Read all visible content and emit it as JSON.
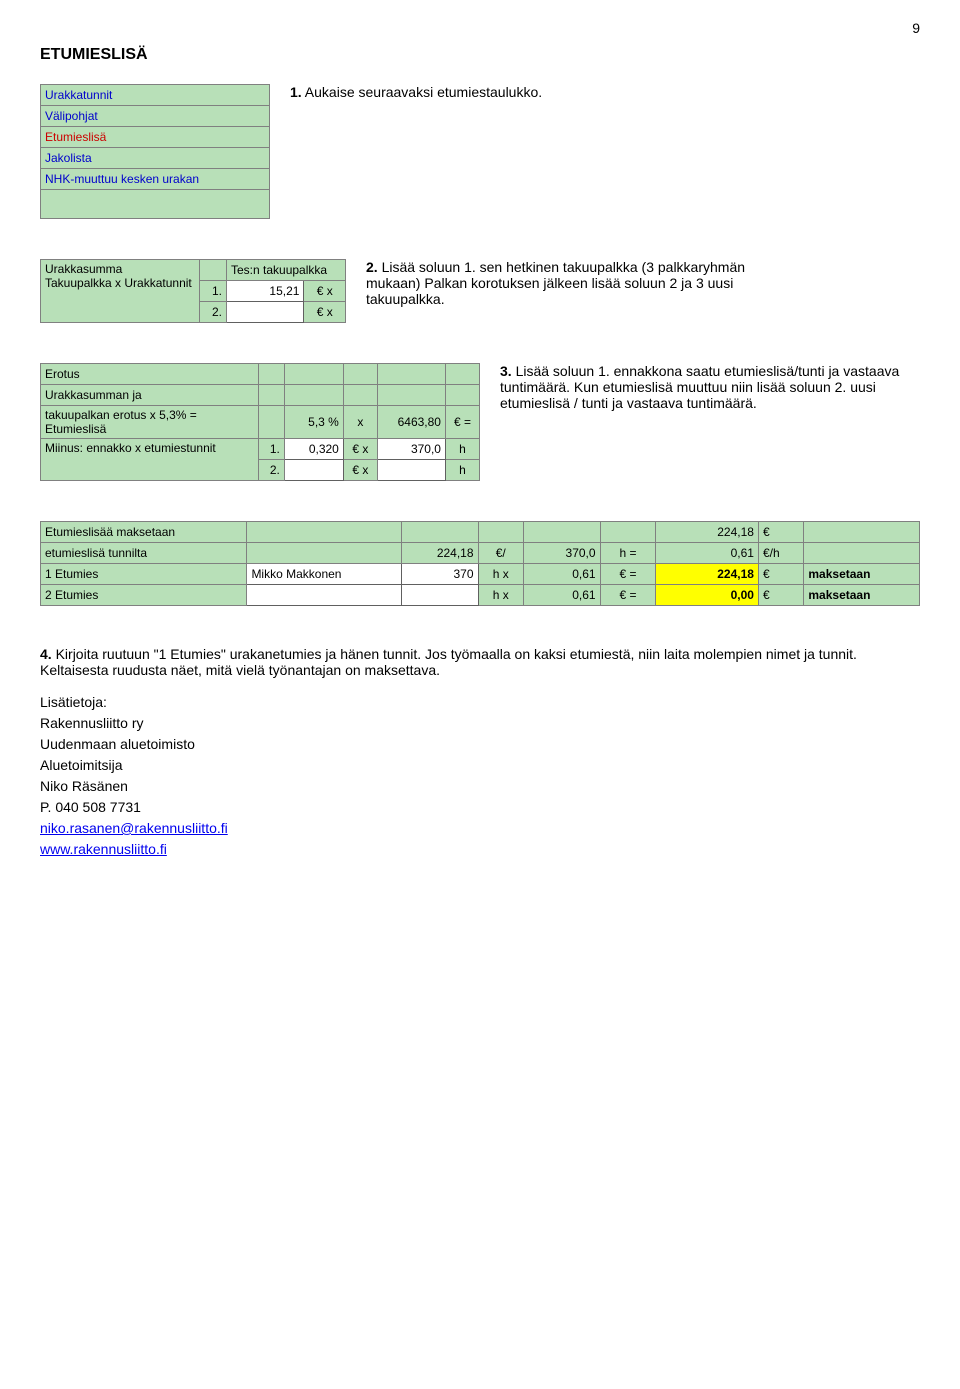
{
  "page_number": "9",
  "heading": "ETUMIESLISÄ",
  "step1": {
    "caption_bold": "1.",
    "caption_rest": " Aukaise seuraavaksi etumiestaulukko.",
    "menu": [
      {
        "text": "Urakkatunnit",
        "cls": "lbl-blue"
      },
      {
        "text": "Välipohjat",
        "cls": "lbl-blue"
      },
      {
        "text": "Etumieslisä",
        "cls": "lbl-red"
      },
      {
        "text": "Jakolista",
        "cls": "lbl-blue"
      },
      {
        "text": "NHK-muuttuu kesken urakan",
        "cls": "lbl-blue"
      }
    ]
  },
  "step2": {
    "caption_bold": "2.",
    "caption_rest": " Lisää soluun 1. sen hetkinen takuupalkka (3 palkkaryhmän mukaan) Palkan korotuksen jälkeen lisää soluun 2 ja 3 uusi takuupalkka.",
    "left_labels": [
      "Urakkasumma",
      "Takuupalkka x Urakkatunnit"
    ],
    "right_header": "Tes:n takuupalkka",
    "rows": [
      {
        "n": "1.",
        "val": "15,21",
        "unit": "€ x"
      },
      {
        "n": "2.",
        "val": "",
        "unit": "€ x"
      }
    ]
  },
  "step3": {
    "caption_bold": "3.",
    "caption_rest": " Lisää soluun 1. ennakkona saatu etumieslisä/tunti ja vastaava tuntimäärä. Kun etumieslisä muuttuu niin lisää soluun 2. uusi etumieslisä / tunti ja vastaava tuntimäärä.",
    "left_labels": [
      "Erotus",
      "Urakkasumman ja",
      "takuupalkan erotus x 5,3% = Etumieslisä",
      "Miinus: ennakko x etumiestunnit"
    ],
    "rowA": {
      "pct": "5,3 %",
      "x": "x",
      "val": "6463,80",
      "eq": "€ ="
    },
    "row1": {
      "n": "1.",
      "rate": "0,320",
      "hours": "370,0",
      "unit_h": "h"
    },
    "row2": {
      "n": "2.",
      "rate": "",
      "hours": "",
      "unit_h": "h"
    },
    "unit_eur_x": "€ x"
  },
  "step4": {
    "labels": [
      "Etumieslisää maksetaan",
      "etumieslisä tunnilta",
      "1 Etumies",
      "2 Etumies"
    ],
    "total": "224,18",
    "total_unit": "€",
    "row_tunnilta": {
      "rate": "224,18",
      "unit1": "€/",
      "hours": "370,0",
      "unit2": "h",
      "eq": "=",
      "perh": "0,61",
      "perh_unit": "€/h"
    },
    "row1": {
      "name": "Mikko Makkonen",
      "hours": "370",
      "unit": "h x",
      "rate": "0,61",
      "eq": "€ =",
      "sum": "224,18",
      "sum_unit": "€",
      "note": "maksetaan"
    },
    "row2": {
      "name": "",
      "hours": "",
      "unit": "h x",
      "rate": "0,61",
      "eq": "€ =",
      "sum": "0,00",
      "sum_unit": "€",
      "note": "maksetaan"
    },
    "caption_bold": "4.",
    "caption_rest": " Kirjoita ruutuun \"1 Etumies\" urakanetumies ja hänen tunnit. Jos työmaalla on kaksi etumiestä, niin laita molempien nimet ja tunnit. Keltaisesta ruudusta näet, mitä vielä työnantajan on maksettava."
  },
  "footer": {
    "more_info": "Lisätietoja:",
    "org": "Rakennusliitto ry",
    "office": "Uudenmaan aluetoimisto",
    "role": "Aluetoimitsija",
    "name": "Niko Räsänen",
    "phone": "P. 040 508 7731",
    "email": "niko.rasanen@rakennusliitto.fi",
    "web": "www.rakennusliitto.fi"
  }
}
